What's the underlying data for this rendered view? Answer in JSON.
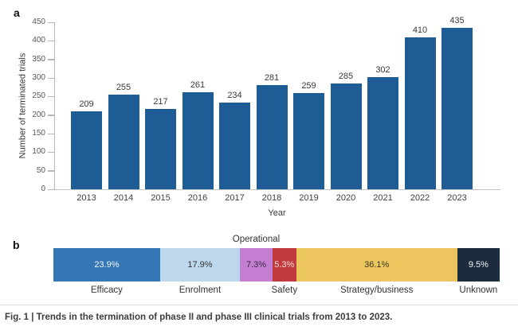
{
  "figure": {
    "panel_a_label": "a",
    "panel_b_label": "b",
    "caption": "Fig. 1 | Trends in the termination of phase II and phase III clinical trials from 2013 to 2023."
  },
  "chart_data": [
    {
      "type": "bar",
      "title": "",
      "xlabel": "Year",
      "ylabel": "Number of terminated trials",
      "categories": [
        "2013",
        "2014",
        "2015",
        "2016",
        "2017",
        "2018",
        "2019",
        "2020",
        "2021",
        "2022",
        "2023"
      ],
      "values": [
        209,
        255,
        217,
        261,
        234,
        281,
        259,
        285,
        302,
        410,
        435
      ],
      "ylim": [
        0,
        450
      ],
      "yticks": [
        0,
        50,
        100,
        150,
        200,
        250,
        300,
        350,
        400,
        450
      ],
      "bar_color": "#1e5c96",
      "grid": false,
      "value_labels_shown": true,
      "legend_position": "none"
    },
    {
      "type": "bar",
      "subtype": "stacked-horizontal-percent",
      "title": "",
      "categories": [
        "Efficacy",
        "Enrolment",
        "Operational",
        "Safety",
        "Strategy/business",
        "Unknown"
      ],
      "values": [
        23.9,
        17.9,
        7.3,
        5.3,
        36.1,
        9.5
      ],
      "segments": [
        {
          "label": "Efficacy",
          "pct": 23.9,
          "display": "23.9%",
          "color": "#3577b4",
          "text_color": "#f2f7fb",
          "label_position": "below"
        },
        {
          "label": "Enrolment",
          "pct": 17.9,
          "display": "17.9%",
          "color": "#bdd7ec",
          "text_color": "#333333",
          "label_position": "below"
        },
        {
          "label": "Operational",
          "pct": 7.3,
          "display": "7.3%",
          "color": "#c57fd2",
          "text_color": "#3a2a42",
          "label_position": "above"
        },
        {
          "label": "Safety",
          "pct": 5.3,
          "display": "5.3%",
          "color": "#c13a3d",
          "text_color": "#f6dddd",
          "label_position": "below"
        },
        {
          "label": "Strategy/business",
          "pct": 36.1,
          "display": "36.1%",
          "color": "#ecc55f",
          "text_color": "#3c3522",
          "label_position": "below"
        },
        {
          "label": "Unknown",
          "pct": 9.5,
          "display": "9.5%",
          "color": "#1d2b3f",
          "text_color": "#f1f3f5",
          "label_position": "below"
        }
      ]
    }
  ]
}
